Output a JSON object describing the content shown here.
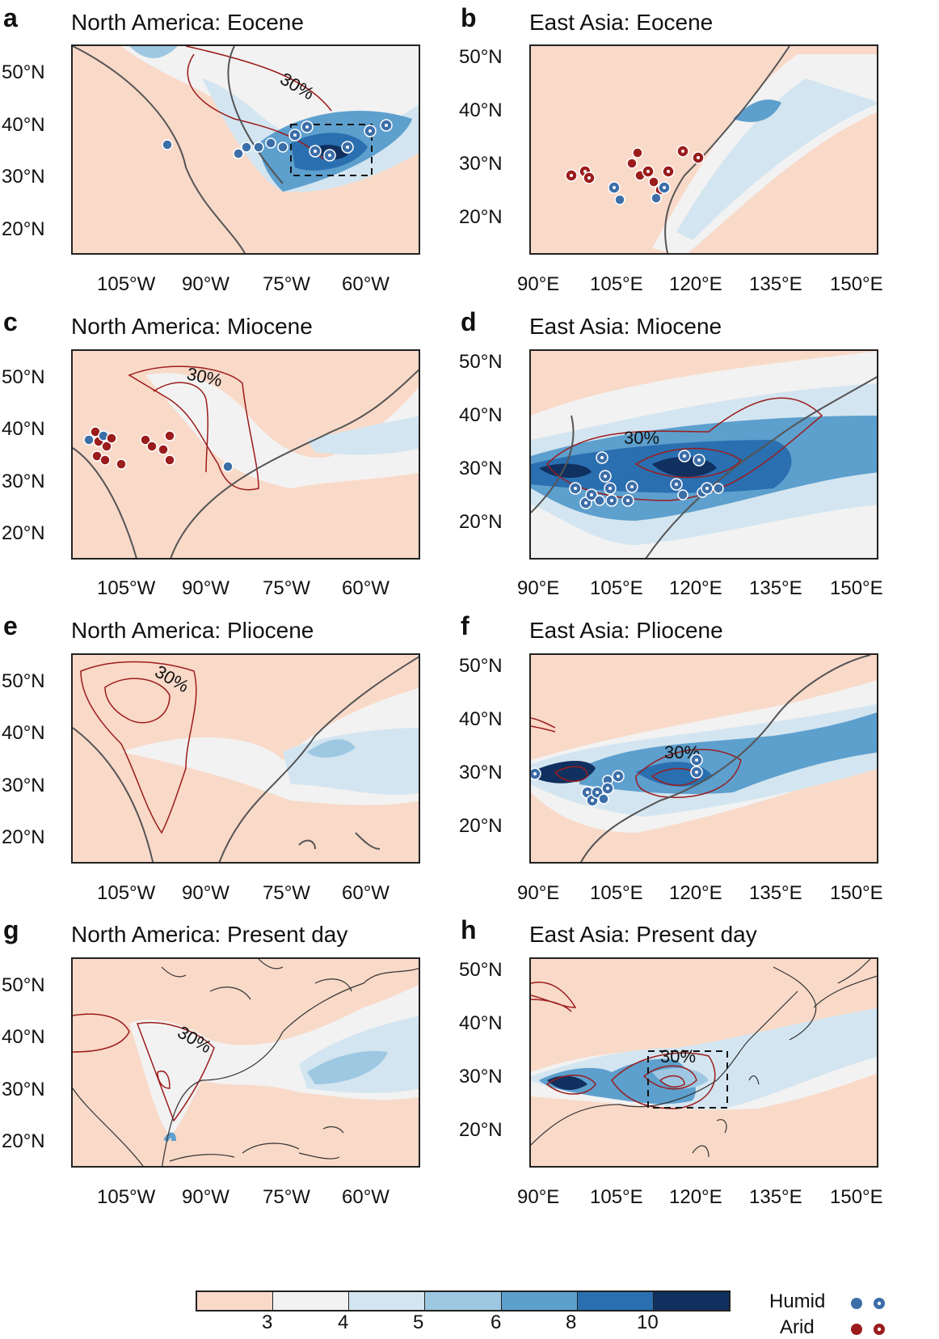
{
  "panels": {
    "a": {
      "letter": "a",
      "title": "North America: Eocene",
      "contour": "30%"
    },
    "b": {
      "letter": "b",
      "title": "East Asia: Eocene"
    },
    "c": {
      "letter": "c",
      "title": "North America: Miocene",
      "contour": "30%"
    },
    "d": {
      "letter": "d",
      "title": "East Asia: Miocene",
      "contour": "30%"
    },
    "e": {
      "letter": "e",
      "title": "North America: Pliocene",
      "contour": "30%"
    },
    "f": {
      "letter": "f",
      "title": "East Asia: Pliocene",
      "contour": "30%"
    },
    "g": {
      "letter": "g",
      "title": "North America: Present day",
      "contour": "30%"
    },
    "h": {
      "letter": "h",
      "title": "East Asia: Present day",
      "contour": "30%"
    }
  },
  "axes": {
    "lat": [
      "50°N",
      "40°N",
      "30°N",
      "20°N"
    ],
    "na_lon": [
      "105°W",
      "90°W",
      "75°W",
      "60°W"
    ],
    "ea_lon": [
      "90°E",
      "105°E",
      "120°E",
      "135°E",
      "150°E"
    ]
  },
  "colorbar": {
    "ticks": [
      "3",
      "4",
      "5",
      "6",
      "8",
      "10"
    ],
    "colors": [
      "#f9d9c8",
      "#f2f2f2",
      "#d3e5f0",
      "#9ec8e2",
      "#5d9fcd",
      "#2a6fb0",
      "#10305f"
    ]
  },
  "legend": {
    "humid": "Humid",
    "arid": "Arid",
    "humid_color": "#3c6ea8",
    "arid_color": "#9b1c1c"
  }
}
